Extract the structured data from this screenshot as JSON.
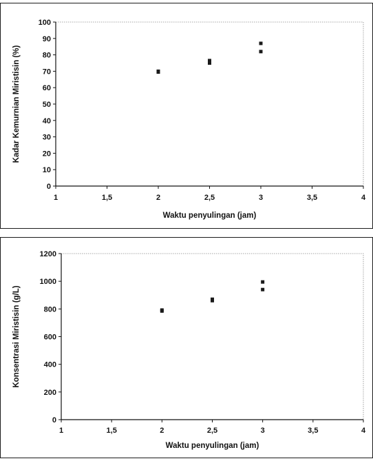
{
  "chart_data": [
    {
      "type": "scatter",
      "title": "",
      "xlabel": "Waktu penyulingan (jam)",
      "ylabel": "Kadar Kemurnian Miristisin (%)",
      "xlim": [
        1,
        4
      ],
      "ylim": [
        0,
        100
      ],
      "x_ticks": [
        "1",
        "1,5",
        "2",
        "2,5",
        "3",
        "3,5",
        "4"
      ],
      "y_ticks": [
        "0",
        "10",
        "20",
        "30",
        "40",
        "50",
        "60",
        "70",
        "80",
        "90",
        "100"
      ],
      "grid": false,
      "points": [
        {
          "x": 2,
          "y": 69.5
        },
        {
          "x": 2,
          "y": 70
        },
        {
          "x": 2.5,
          "y": 75
        },
        {
          "x": 2.5,
          "y": 76.5
        },
        {
          "x": 3,
          "y": 82
        },
        {
          "x": 3,
          "y": 87
        }
      ],
      "marker_color": "#1a1a1a"
    },
    {
      "type": "scatter",
      "title": "",
      "xlabel": "Waktu penyulingan (jam)",
      "ylabel": "Konsentrasi Miristisin (g/L)",
      "xlim": [
        1,
        4
      ],
      "ylim": [
        0,
        1200
      ],
      "x_ticks": [
        "1",
        "1,5",
        "2",
        "2,5",
        "3",
        "3,5",
        "4"
      ],
      "y_ticks": [
        "0",
        "200",
        "400",
        "600",
        "800",
        "1000",
        "1200"
      ],
      "grid": false,
      "points": [
        {
          "x": 2,
          "y": 785
        },
        {
          "x": 2,
          "y": 792
        },
        {
          "x": 2.5,
          "y": 860
        },
        {
          "x": 2.5,
          "y": 870
        },
        {
          "x": 3,
          "y": 940
        },
        {
          "x": 3,
          "y": 995
        }
      ],
      "marker_color": "#1a1a1a"
    }
  ]
}
